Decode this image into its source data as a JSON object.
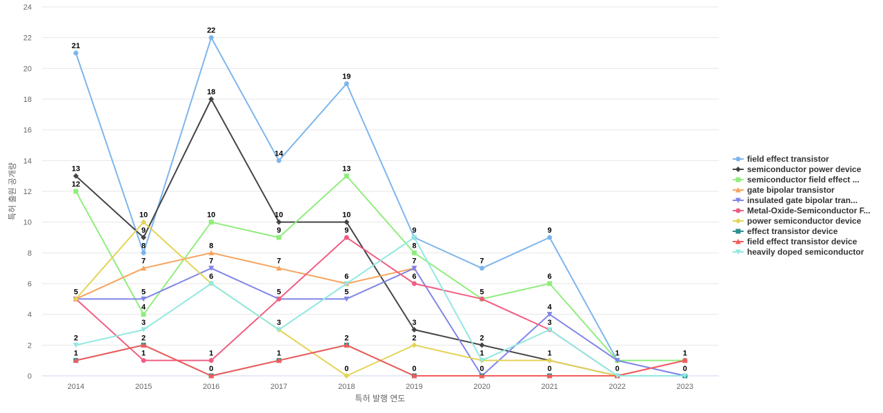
{
  "chart_data": {
    "type": "line",
    "title": "",
    "xlabel": "특허 발행 연도",
    "ylabel": "특허 출원 공개량",
    "x": [
      "2014",
      "2015",
      "2016",
      "2017",
      "2018",
      "2019",
      "2020",
      "2021",
      "2022",
      "2023"
    ],
    "ylim": [
      0,
      24
    ],
    "yticks": [
      0,
      2,
      4,
      6,
      8,
      10,
      12,
      14,
      16,
      18,
      20,
      22,
      24
    ],
    "grid": true,
    "legend_position": "right",
    "series": [
      {
        "name": "field effect transistor",
        "color": "#7cb5ec",
        "marker": "circle",
        "values": [
          21,
          8,
          22,
          14,
          19,
          9,
          7,
          9,
          1,
          0
        ]
      },
      {
        "name": "semiconductor power device",
        "color": "#434348",
        "marker": "diamond",
        "values": [
          13,
          9,
          18,
          10,
          10,
          3,
          2,
          1,
          0,
          0
        ]
      },
      {
        "name": "semiconductor field effect ...",
        "color": "#90ed7d",
        "marker": "square",
        "values": [
          12,
          4,
          10,
          9,
          13,
          8,
          5,
          6,
          1,
          1
        ]
      },
      {
        "name": "gate bipolar transistor",
        "color": "#f7a35c",
        "marker": "triangle",
        "values": [
          5,
          7,
          8,
          7,
          6,
          7,
          null,
          null,
          null,
          null
        ]
      },
      {
        "name": "insulated gate bipolar tran...",
        "color": "#8085e9",
        "marker": "triangle-down",
        "values": [
          5,
          5,
          7,
          5,
          5,
          7,
          0,
          4,
          1,
          0
        ]
      },
      {
        "name": "Metal-Oxide-Semiconductor F...",
        "color": "#f15c80",
        "marker": "circle",
        "values": [
          5,
          1,
          1,
          5,
          9,
          6,
          5,
          3,
          0,
          1
        ]
      },
      {
        "name": "power semiconductor device",
        "color": "#e4d354",
        "marker": "diamond",
        "values": [
          5,
          10,
          6,
          3,
          0,
          2,
          1,
          1,
          0,
          0
        ]
      },
      {
        "name": "effect transistor device",
        "color": "#2b908f",
        "marker": "square",
        "values": [
          1,
          2,
          0,
          1,
          2,
          0,
          0,
          0,
          0,
          0
        ]
      },
      {
        "name": "field effect transistor device",
        "color": "#f45b5b",
        "marker": "triangle",
        "values": [
          1,
          2,
          0,
          1,
          2,
          0,
          0,
          0,
          0,
          1
        ]
      },
      {
        "name": "heavily doped semiconductor",
        "color": "#91e8e1",
        "marker": "triangle-down",
        "values": [
          2,
          3,
          6,
          3,
          6,
          9,
          1,
          3,
          0,
          0
        ]
      }
    ],
    "data_labels": [
      {
        "x": "2014",
        "y": 21,
        "text": "21"
      },
      {
        "x": "2014",
        "y": 13,
        "text": "13"
      },
      {
        "x": "2014",
        "y": 12,
        "text": "12"
      },
      {
        "x": "2014",
        "y": 5,
        "text": "5"
      },
      {
        "x": "2014",
        "y": 2,
        "text": "2"
      },
      {
        "x": "2014",
        "y": 1,
        "text": "1"
      },
      {
        "x": "2015",
        "y": 10,
        "text": "10"
      },
      {
        "x": "2015",
        "y": 9,
        "text": "9"
      },
      {
        "x": "2015",
        "y": 8,
        "text": "8"
      },
      {
        "x": "2015",
        "y": 7,
        "text": "7"
      },
      {
        "x": "2015",
        "y": 5,
        "text": "5"
      },
      {
        "x": "2015",
        "y": 4,
        "text": "4"
      },
      {
        "x": "2015",
        "y": 3,
        "text": "3"
      },
      {
        "x": "2015",
        "y": 2,
        "text": "2"
      },
      {
        "x": "2015",
        "y": 1,
        "text": "1"
      },
      {
        "x": "2016",
        "y": 22,
        "text": "22"
      },
      {
        "x": "2016",
        "y": 18,
        "text": "18"
      },
      {
        "x": "2016",
        "y": 10,
        "text": "10"
      },
      {
        "x": "2016",
        "y": 8,
        "text": "8"
      },
      {
        "x": "2016",
        "y": 7,
        "text": "7"
      },
      {
        "x": "2016",
        "y": 6,
        "text": "6"
      },
      {
        "x": "2016",
        "y": 1,
        "text": "1"
      },
      {
        "x": "2016",
        "y": 0,
        "text": "0"
      },
      {
        "x": "2017",
        "y": 14,
        "text": "14"
      },
      {
        "x": "2017",
        "y": 10,
        "text": "10"
      },
      {
        "x": "2017",
        "y": 9,
        "text": "9"
      },
      {
        "x": "2017",
        "y": 7,
        "text": "7"
      },
      {
        "x": "2017",
        "y": 5,
        "text": "5"
      },
      {
        "x": "2017",
        "y": 3,
        "text": "3"
      },
      {
        "x": "2017",
        "y": 1,
        "text": "1"
      },
      {
        "x": "2018",
        "y": 19,
        "text": "19"
      },
      {
        "x": "2018",
        "y": 13,
        "text": "13"
      },
      {
        "x": "2018",
        "y": 10,
        "text": "10"
      },
      {
        "x": "2018",
        "y": 9,
        "text": "9"
      },
      {
        "x": "2018",
        "y": 6,
        "text": "6"
      },
      {
        "x": "2018",
        "y": 5,
        "text": "5"
      },
      {
        "x": "2018",
        "y": 2,
        "text": "2"
      },
      {
        "x": "2018",
        "y": 0,
        "text": "0"
      },
      {
        "x": "2019",
        "y": 9,
        "text": "9"
      },
      {
        "x": "2019",
        "y": 8,
        "text": "8"
      },
      {
        "x": "2019",
        "y": 7,
        "text": "7"
      },
      {
        "x": "2019",
        "y": 6,
        "text": "6"
      },
      {
        "x": "2019",
        "y": 3,
        "text": "3"
      },
      {
        "x": "2019",
        "y": 2,
        "text": "2"
      },
      {
        "x": "2019",
        "y": 0,
        "text": "0"
      },
      {
        "x": "2020",
        "y": 7,
        "text": "7"
      },
      {
        "x": "2020",
        "y": 5,
        "text": "5"
      },
      {
        "x": "2020",
        "y": 2,
        "text": "2"
      },
      {
        "x": "2020",
        "y": 1,
        "text": "1"
      },
      {
        "x": "2020",
        "y": 0,
        "text": "0"
      },
      {
        "x": "2021",
        "y": 9,
        "text": "9"
      },
      {
        "x": "2021",
        "y": 6,
        "text": "6"
      },
      {
        "x": "2021",
        "y": 4,
        "text": "4"
      },
      {
        "x": "2021",
        "y": 3,
        "text": "3"
      },
      {
        "x": "2021",
        "y": 1,
        "text": "1"
      },
      {
        "x": "2021",
        "y": 0,
        "text": "0"
      },
      {
        "x": "2022",
        "y": 1,
        "text": "1"
      },
      {
        "x": "2022",
        "y": 0,
        "text": "0"
      },
      {
        "x": "2023",
        "y": 1,
        "text": "1"
      },
      {
        "x": "2023",
        "y": 0,
        "text": "0"
      }
    ]
  }
}
